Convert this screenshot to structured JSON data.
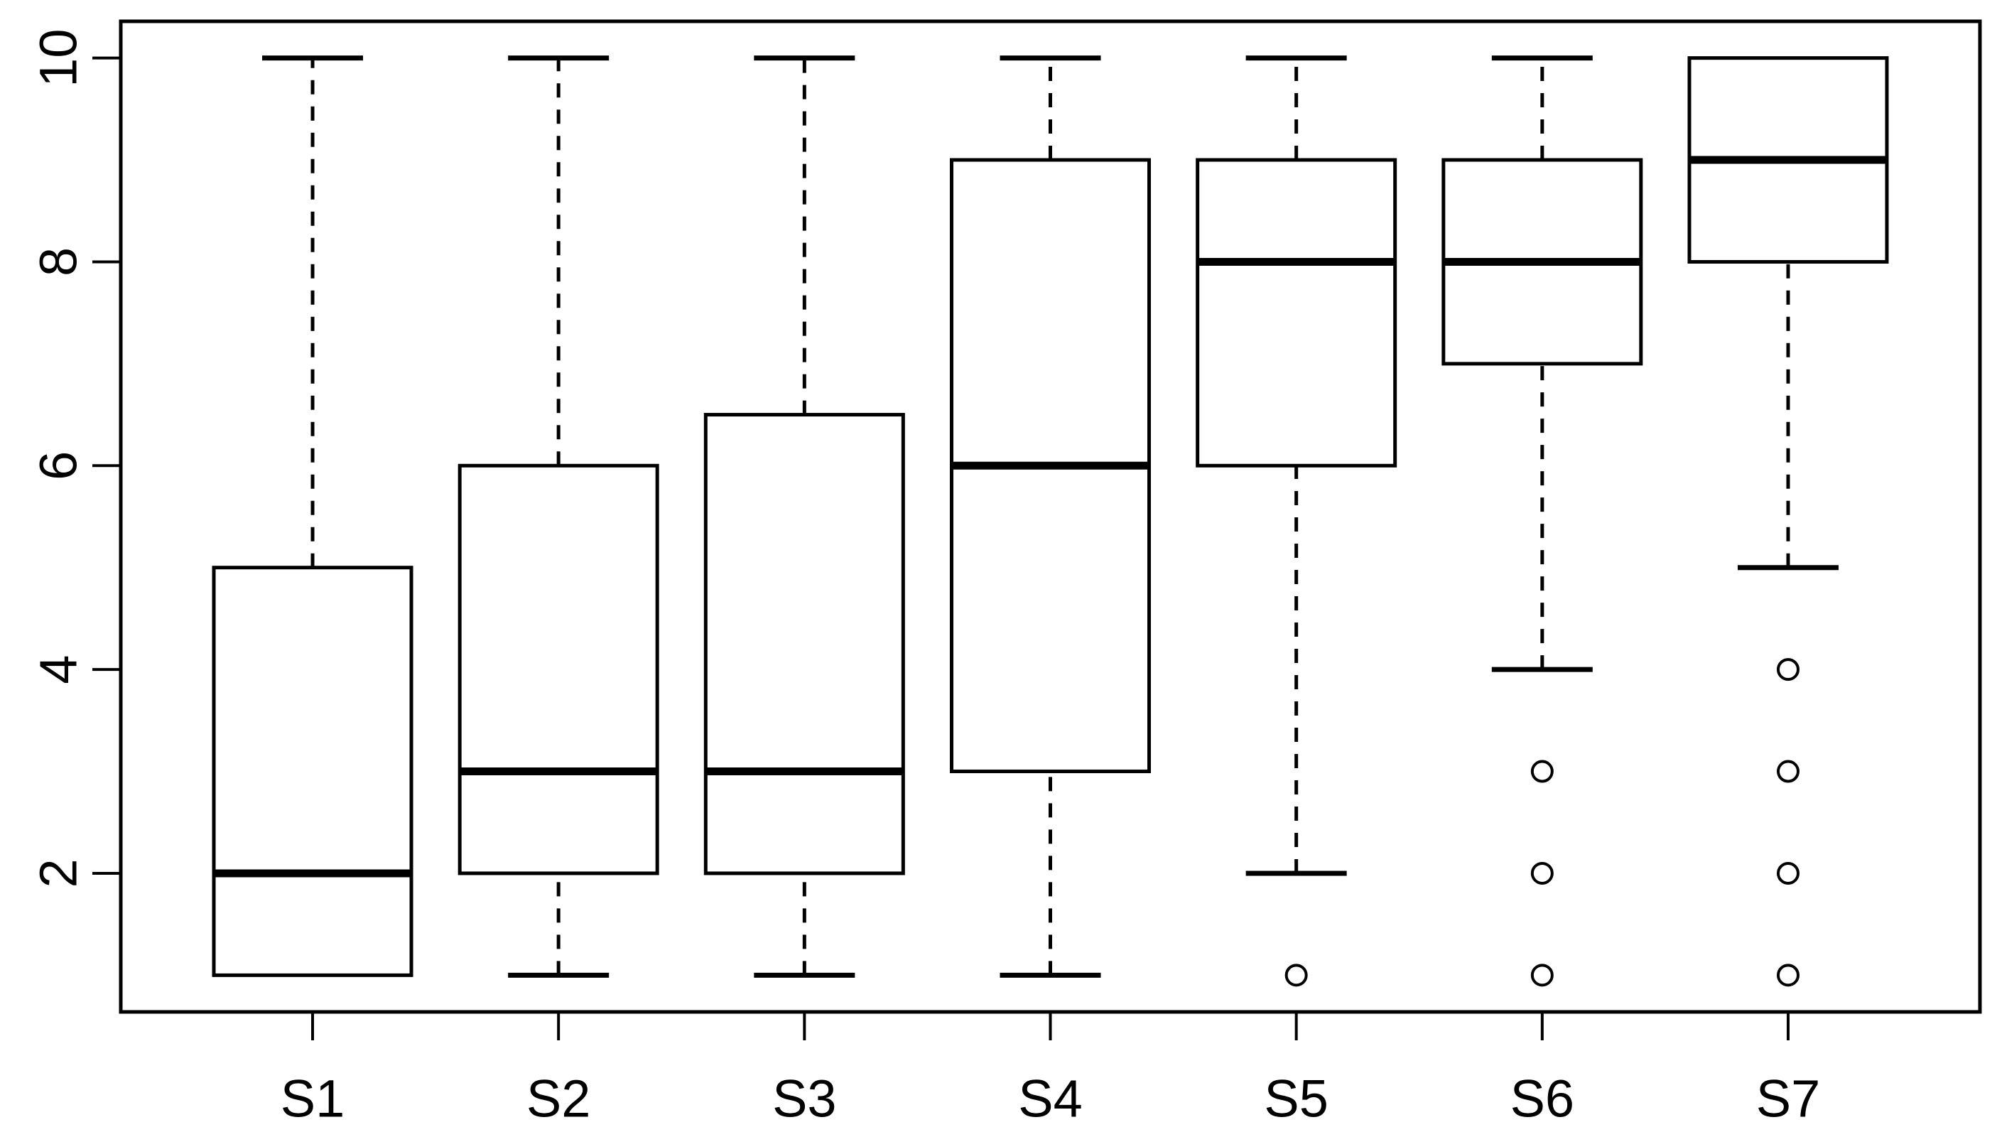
{
  "chart_data": {
    "type": "box",
    "title": "",
    "xlabel": "",
    "ylabel": "",
    "categories": [
      "S1",
      "S2",
      "S3",
      "S4",
      "S5",
      "S6",
      "S7"
    ],
    "series": [
      {
        "name": "S1",
        "whisker_low": 1,
        "q1": 1,
        "median": 2,
        "q3": 5,
        "whisker_high": 10,
        "outliers": []
      },
      {
        "name": "S2",
        "whisker_low": 1,
        "q1": 2,
        "median": 3,
        "q3": 6,
        "whisker_high": 10,
        "outliers": []
      },
      {
        "name": "S3",
        "whisker_low": 1,
        "q1": 2,
        "median": 3,
        "q3": 6.5,
        "whisker_high": 10,
        "outliers": []
      },
      {
        "name": "S4",
        "whisker_low": 1,
        "q1": 3,
        "median": 6,
        "q3": 9,
        "whisker_high": 10,
        "outliers": []
      },
      {
        "name": "S5",
        "whisker_low": 2,
        "q1": 6,
        "median": 8,
        "q3": 9,
        "whisker_high": 10,
        "outliers": [
          1
        ]
      },
      {
        "name": "S6",
        "whisker_low": 4,
        "q1": 7,
        "median": 8,
        "q3": 9,
        "whisker_high": 10,
        "outliers": [
          3,
          2,
          1
        ]
      },
      {
        "name": "S7",
        "whisker_low": 5,
        "q1": 8,
        "median": 9,
        "q3": 10,
        "whisker_high": 10,
        "outliers": [
          4,
          3,
          2,
          1
        ]
      }
    ],
    "yticks": [
      "2",
      "4",
      "6",
      "8",
      "10"
    ],
    "ytick_values": [
      2,
      4,
      6,
      8,
      10
    ],
    "ylim": [
      0.64,
      10.36
    ],
    "xlim": [
      0.22,
      7.78
    ],
    "grid": false,
    "legend": null,
    "colors": {
      "line": "#000000",
      "box_fill": "#ffffff",
      "background": "#ffffff"
    }
  }
}
